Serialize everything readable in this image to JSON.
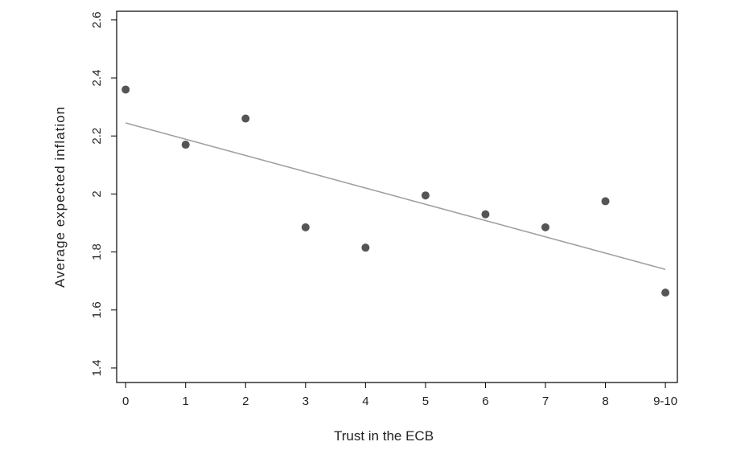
{
  "chart_data": {
    "type": "scatter",
    "title": "",
    "xlabel": "Trust in the ECB",
    "ylabel": "Average expected inflation",
    "categories": [
      "0",
      "1",
      "2",
      "3",
      "4",
      "5",
      "6",
      "7",
      "8",
      "9-10"
    ],
    "x": [
      0,
      1,
      2,
      3,
      4,
      5,
      6,
      7,
      8,
      9
    ],
    "y_ticks": [
      "1.4",
      "1.6",
      "1.8",
      "2",
      "2.2",
      "2.4",
      "2.6"
    ],
    "ylim": [
      1.35,
      2.63
    ],
    "xlim": [
      -0.15,
      9.2
    ],
    "grid": false,
    "series": [
      {
        "values": [
          2.36,
          2.17,
          2.26,
          1.885,
          1.815,
          1.995,
          1.93,
          1.885,
          1.975,
          1.66
        ]
      }
    ],
    "fit_line": {
      "x": [
        0,
        9
      ],
      "y": [
        2.245,
        1.74
      ]
    },
    "colors": {
      "points": "#555555",
      "fit_line": "#a0a0a0",
      "axis": "#000000"
    }
  }
}
